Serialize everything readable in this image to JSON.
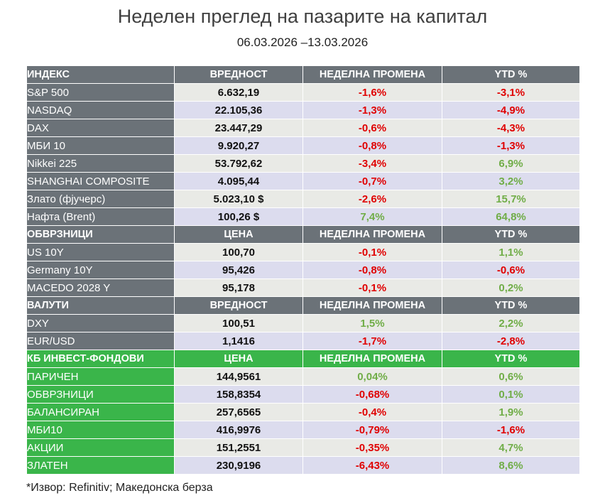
{
  "title": "Неделен преглед на пазарите на капитал",
  "subtitle": "06.03.2026 –13.03.2026",
  "sections": [
    {
      "green": false,
      "headers": [
        "ИНДЕКС",
        "ВРЕДНОСТ",
        "НЕДЕЛНА ПРОМЕНА",
        "YTD %"
      ],
      "rows": [
        {
          "name": "S&P 500",
          "value": "6.632,19",
          "weekly": "-1,6%",
          "ytd": "-3,1%"
        },
        {
          "name": "NASDAQ",
          "value": "22.105,36",
          "weekly": "-1,3%",
          "ytd": "-4,9%"
        },
        {
          "name": "DAX",
          "value": "23.447,29",
          "weekly": "-0,6%",
          "ytd": "-4,3%"
        },
        {
          "name": "МБИ 10",
          "value": "9.920,27",
          "weekly": "-0,8%",
          "ytd": "-1,3%"
        },
        {
          "name": "Nikkei 225",
          "value": "53.792,62",
          "weekly": "-3,4%",
          "ytd": "6,9%"
        },
        {
          "name": "SHANGHAI COMPOSITE",
          "value": "4.095,44",
          "weekly": "-0,7%",
          "ytd": "3,2%"
        },
        {
          "name": "Злато (фјучерс)",
          "value": "5.023,10 $",
          "weekly": "-2,6%",
          "ytd": "15,7%"
        },
        {
          "name": "Нафта (Brent)",
          "value": "100,26 $",
          "weekly": "7,4%",
          "ytd": "64,8%"
        }
      ]
    },
    {
      "green": false,
      "headers": [
        "ОБВРЗНИЦИ",
        "ЦЕНА",
        "НЕДЕЛНА ПРОМЕНА",
        "YTD %"
      ],
      "rows": [
        {
          "name": "US 10Y",
          "value": "100,70",
          "weekly": "-0,1%",
          "ytd": "1,1%"
        },
        {
          "name": "Germany 10Y",
          "value": "95,426",
          "weekly": "-0,8%",
          "ytd": "-0,6%"
        },
        {
          "name": "MACEDO 2028 Y",
          "value": "95,178",
          "weekly": "-0,1%",
          "ytd": "0,2%"
        }
      ]
    },
    {
      "green": false,
      "headers": [
        "ВАЛУТИ",
        "ВРЕДНОСТ",
        "НЕДЕЛНА ПРОМЕНА",
        "YTD %"
      ],
      "rows": [
        {
          "name": "DXY",
          "value": "100,51",
          "weekly": "1,5%",
          "ytd": "2,2%"
        },
        {
          "name": "EUR/USD",
          "value": "1,1416",
          "weekly": "-1,7%",
          "ytd": "-2,8%"
        }
      ]
    },
    {
      "green": true,
      "headers": [
        "КБ ИНВЕСТ-ФОНДОВИ",
        "ЦЕНА",
        "НЕДЕЛНА ПРОМЕНА",
        "YTD %"
      ],
      "rows": [
        {
          "name": "ПАРИЧЕН",
          "value": "144,9561",
          "weekly": "0,04%",
          "ytd": "0,6%"
        },
        {
          "name": "ОБВРЗНИЦИ",
          "value": "158,8354",
          "weekly": "-0,68%",
          "ytd": "0,1%"
        },
        {
          "name": "БАЛАНСИРАН",
          "value": "257,6565",
          "weekly": "-0,4%",
          "ytd": "1,9%"
        },
        {
          "name": "МБИ10",
          "value": "416,9976",
          "weekly": "-0,79%",
          "ytd": "-1,6%"
        },
        {
          "name": "АКЦИИ",
          "value": "151,2551",
          "weekly": "-0,35%",
          "ytd": "4,7%"
        },
        {
          "name": "ЗЛАТЕН",
          "value": "230,9196",
          "weekly": "-6,43%",
          "ytd": "8,6%"
        }
      ]
    }
  ],
  "footnote": "*Извор: Refinitiv; Македонска берза",
  "colors": {
    "header_gray": "#6b7278",
    "header_green": "#3ab54a",
    "row_light": "#e9eae6",
    "row_lavender": "#dcdcee",
    "negative": "#e00000",
    "positive": "#70ad47"
  }
}
